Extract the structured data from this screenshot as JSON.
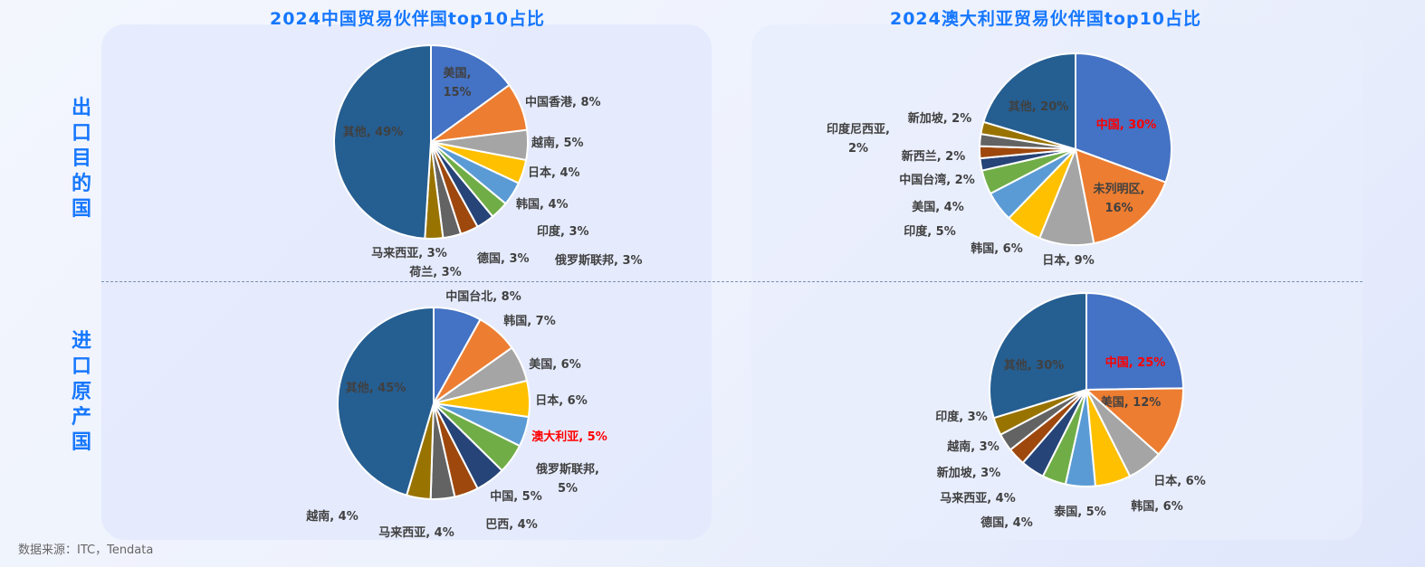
{
  "headers": {
    "col_left": "2024中国贸易伙伴国top10占比",
    "col_right": "2024澳大利亚贸易伙伴国top10占比",
    "row_top": "出口目的国",
    "row_bottom": "进口原产国"
  },
  "source": "数据来源：ITC，Tendata",
  "colors": [
    "#4472C4",
    "#ED7D31",
    "#A5A5A5",
    "#FFC000",
    "#5B9BD5",
    "#70AD47",
    "#264478",
    "#9E480E",
    "#636363",
    "#997300",
    "#255E91"
  ],
  "highlight_color": "#FF0000",
  "chart_data": [
    {
      "type": "pie",
      "country": "中国",
      "flow": "出口目的国",
      "categories": [
        "美国",
        "中国香港",
        "越南",
        "日本",
        "韩国",
        "印度",
        "俄罗斯联邦",
        "德国",
        "荷兰",
        "马来西亚",
        "其他"
      ],
      "values": [
        15,
        8,
        5,
        4,
        4,
        3,
        3,
        3,
        3,
        3,
        49
      ],
      "highlight": []
    },
    {
      "type": "pie",
      "country": "澳大利亚",
      "flow": "出口目的国",
      "categories": [
        "中国",
        "未列明区",
        "日本",
        "韩国",
        "印度",
        "美国",
        "中国台湾",
        "新西兰",
        "印度尼西亚",
        "新加坡",
        "其他"
      ],
      "values": [
        30,
        16,
        9,
        6,
        5,
        4,
        2,
        2,
        2,
        2,
        20
      ],
      "highlight": [
        "中国"
      ]
    },
    {
      "type": "pie",
      "country": "中国",
      "flow": "进口原产国",
      "categories": [
        "中国台北",
        "韩国",
        "美国",
        "日本",
        "澳大利亚",
        "俄罗斯联邦",
        "中国",
        "巴西",
        "马来西亚",
        "越南",
        "其他"
      ],
      "values": [
        8,
        7,
        6,
        6,
        5,
        5,
        5,
        4,
        4,
        4,
        45
      ],
      "highlight": [
        "澳大利亚"
      ]
    },
    {
      "type": "pie",
      "country": "澳大利亚",
      "flow": "进口原产国",
      "categories": [
        "中国",
        "美国",
        "日本",
        "韩国",
        "泰国",
        "德国",
        "马来西亚",
        "新加坡",
        "越南",
        "印度",
        "其他"
      ],
      "values": [
        25,
        12,
        6,
        6,
        5,
        4,
        4,
        3,
        3,
        3,
        30
      ],
      "highlight": [
        "中国"
      ]
    }
  ]
}
